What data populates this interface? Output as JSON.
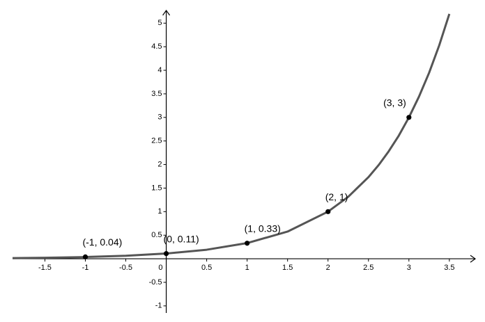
{
  "chart_data": {
    "type": "line",
    "xlim": [
      -1.9,
      3.82
    ],
    "ylim": [
      -1.15,
      5.27
    ],
    "xticks": [
      -1.5,
      -1,
      -0.5,
      0,
      0.5,
      1,
      1.5,
      2,
      2.5,
      3,
      3.5
    ],
    "yticks": [
      -1,
      -0.5,
      0.5,
      1,
      1.5,
      2,
      2.5,
      3,
      3.5,
      4,
      4.5,
      5
    ],
    "grid": false,
    "series": [
      {
        "color": "#555555",
        "x": [
          -1.9,
          -1.5,
          -1,
          -0.5,
          0,
          0.5,
          1,
          1.5,
          2,
          2.25,
          2.5,
          2.625,
          2.75,
          2.875,
          3,
          3.125,
          3.25,
          3.375,
          3.5
        ],
        "values": [
          0.0138,
          0.0214,
          0.037,
          0.0641,
          0.111,
          0.192,
          0.333,
          0.577,
          1,
          1.316,
          1.732,
          1.987,
          2.28,
          2.613,
          3,
          3.443,
          3.948,
          4.53,
          5.196
        ]
      },
      {
        "color": "#000000",
        "markers": true,
        "x": [
          -1,
          0,
          1,
          2,
          3
        ],
        "values": [
          0.04,
          0.11,
          0.33,
          1,
          3
        ],
        "value_labels": [
          "(-1, 0.04)",
          "(0, 0.11)",
          "(1, 0.33)",
          "(2, 1)",
          "(3, 3)"
        ]
      }
    ]
  }
}
